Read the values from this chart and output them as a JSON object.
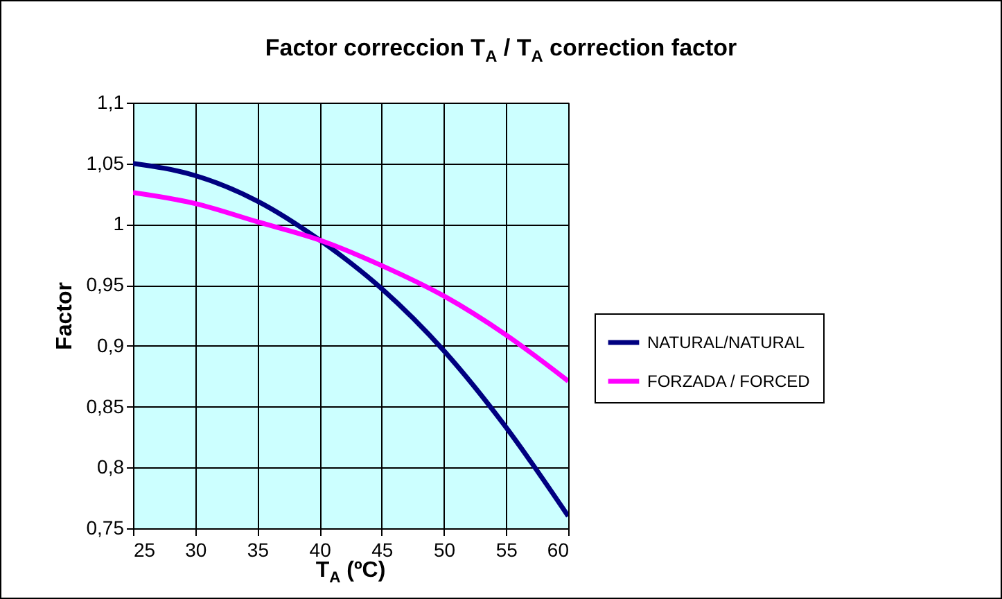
{
  "chart_data": {
    "type": "line",
    "title": "Factor correccion T$_{A}$ / T$_{A}$ correction factor",
    "xlabel": "T$_{A}$ (ºC)",
    "ylabel": "Factor",
    "x": [
      25,
      30,
      35,
      40,
      45,
      50,
      55,
      60
    ],
    "series": [
      {
        "name": "NATURAL/NATURAL",
        "color": "#000080",
        "values": [
          1.05,
          1.04,
          1.019,
          0.987,
          0.947,
          0.896,
          0.833,
          0.76
        ]
      },
      {
        "name": "FORZADA / FORCED",
        "color": "#ff00ff",
        "values": [
          1.026,
          1.017,
          1.002,
          0.987,
          0.966,
          0.941,
          0.909,
          0.871
        ]
      }
    ],
    "xlim": [
      25,
      60
    ],
    "xticks": [
      25,
      30,
      35,
      40,
      45,
      50,
      55,
      60
    ],
    "ylim": [
      0.75,
      1.1
    ],
    "yticks": [
      {
        "value": 0.75,
        "label": "0,75"
      },
      {
        "value": 0.8,
        "label": "0,8"
      },
      {
        "value": 0.85,
        "label": "0,85"
      },
      {
        "value": 0.9,
        "label": "0,9"
      },
      {
        "value": 0.95,
        "label": "0,95"
      },
      {
        "value": 1,
        "label": "1"
      },
      {
        "value": 1.05,
        "label": "1,05"
      },
      {
        "value": 1.1,
        "label": "1,1"
      }
    ],
    "grid": true,
    "legend": "right"
  }
}
